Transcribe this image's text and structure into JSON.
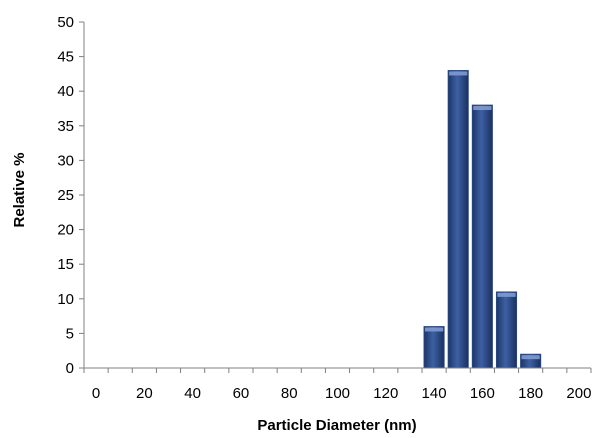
{
  "chart_data": {
    "type": "bar",
    "title": "",
    "xlabel": "Particle Diameter (nm)",
    "ylabel": "Relative %",
    "xlim": [
      -5,
      205
    ],
    "ylim": [
      0,
      50
    ],
    "x_ticks": [
      0,
      20,
      40,
      60,
      80,
      100,
      120,
      140,
      160,
      180,
      200
    ],
    "y_ticks": [
      0,
      5,
      10,
      15,
      20,
      25,
      30,
      35,
      40,
      45,
      50
    ],
    "bin_width": 10,
    "grid": false,
    "legend": "none",
    "bar_color": "#2c4a86",
    "bars": [
      {
        "x": 140,
        "value": 6
      },
      {
        "x": 150,
        "value": 43
      },
      {
        "x": 160,
        "value": 38
      },
      {
        "x": 170,
        "value": 11
      },
      {
        "x": 180,
        "value": 2
      }
    ]
  }
}
